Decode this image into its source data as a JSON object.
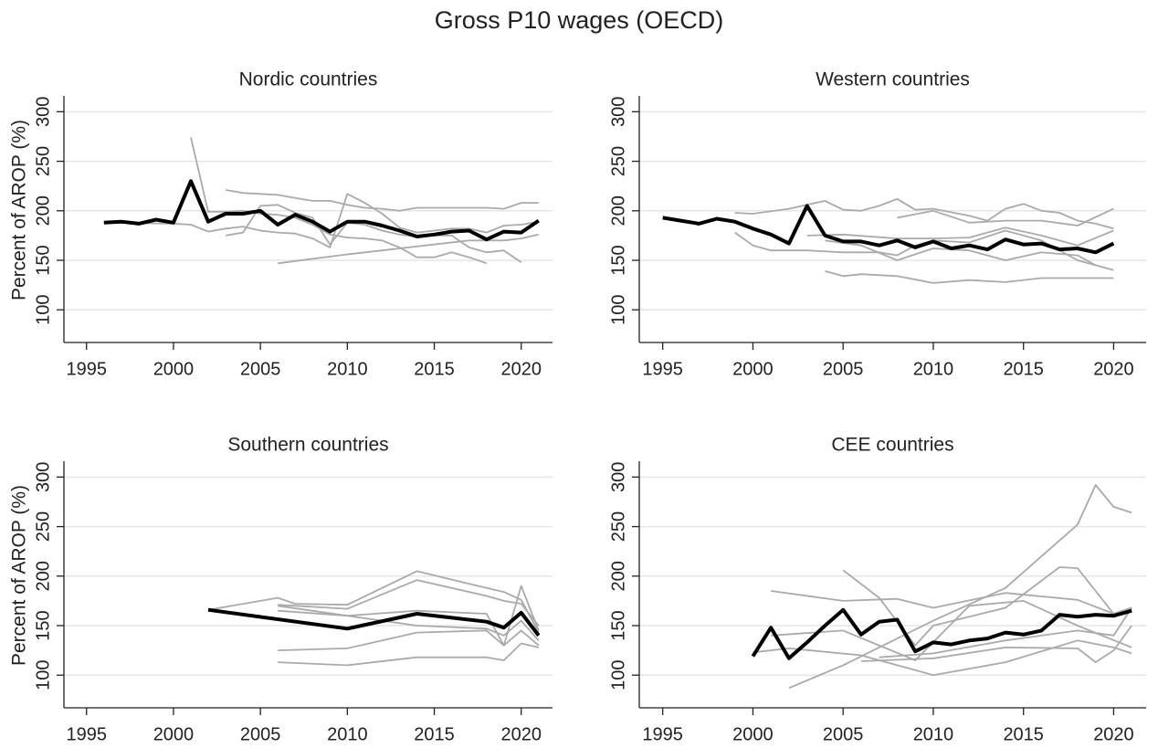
{
  "title": "Gross P10 wages (OECD)",
  "chart_data": [
    {
      "type": "line",
      "title": "Nordic countries",
      "ylabel": "Percent of AROP (%)",
      "xlim": [
        1993.7,
        2021.8
      ],
      "ylim": [
        67,
        316
      ],
      "xticks": [
        1995,
        2000,
        2005,
        2010,
        2015,
        2020
      ],
      "yticks": [
        100,
        150,
        200,
        250,
        300
      ],
      "grid": true,
      "series": [
        {
          "color": "#aaaaaa",
          "x": [
            2001,
            2002,
            2003,
            2004,
            2005,
            2006,
            2007,
            2008,
            2009,
            2010,
            2011,
            2012,
            2013,
            2014,
            2015,
            2016,
            2017,
            2018
          ],
          "values": [
            274,
            199,
            199,
            200,
            197,
            196,
            193,
            186,
            176,
            173,
            172,
            170,
            163,
            153,
            153,
            158,
            153,
            147
          ]
        },
        {
          "color": "#aaaaaa",
          "x": [
            2003,
            2004,
            2005,
            2006,
            2007,
            2008,
            2009,
            2010,
            2011,
            2012,
            2013,
            2014,
            2015,
            2016,
            2017,
            2018,
            2019,
            2020,
            2021
          ],
          "values": [
            221,
            218,
            217,
            216,
            213,
            210,
            210,
            206,
            203,
            202,
            200,
            203,
            203,
            203,
            203,
            203,
            202,
            208,
            208
          ]
        },
        {
          "color": "#aaaaaa",
          "x": [
            1996,
            2000,
            2001,
            2002,
            2003,
            2004,
            2005,
            2006,
            2007,
            2008,
            2009,
            2010,
            2011,
            2012,
            2013,
            2014,
            2015,
            2016,
            2017,
            2018,
            2019,
            2020,
            2021
          ],
          "values": [
            188,
            187,
            186,
            179,
            182,
            184,
            180,
            178,
            177,
            172,
            163,
            217,
            208,
            197,
            183,
            178,
            180,
            182,
            182,
            178,
            185,
            186,
            189
          ]
        },
        {
          "color": "#aaaaaa",
          "x": [
            2003,
            2004,
            2005,
            2006,
            2007,
            2008,
            2009,
            2010,
            2011,
            2012,
            2013,
            2014,
            2015,
            2016,
            2017,
            2018,
            2019,
            2020
          ],
          "values": [
            175,
            178,
            205,
            206,
            198,
            193,
            166,
            188,
            186,
            180,
            176,
            174,
            175,
            175,
            163,
            158,
            160,
            148
          ]
        },
        {
          "color": "#aaaaaa",
          "x": [
            2006,
            2010,
            2014,
            2017,
            2019,
            2020,
            2021
          ],
          "values": [
            147,
            156,
            164,
            170,
            170,
            172,
            176
          ]
        },
        {
          "color": "#000000",
          "x": [
            1996,
            1997,
            1998,
            1999,
            2000,
            2001,
            2002,
            2003,
            2004,
            2005,
            2006,
            2007,
            2008,
            2009,
            2010,
            2011,
            2012,
            2013,
            2014,
            2015,
            2016,
            2017,
            2018,
            2019,
            2020,
            2021
          ],
          "values": [
            188,
            189,
            187,
            191,
            188,
            230,
            189,
            197,
            197,
            200,
            186,
            196,
            189,
            179,
            189,
            189,
            185,
            180,
            174,
            176,
            179,
            180,
            171,
            179,
            178,
            190
          ]
        }
      ]
    },
    {
      "type": "line",
      "title": "Western countries",
      "xlim": [
        1993.7,
        2021.8
      ],
      "ylim": [
        67,
        316
      ],
      "xticks": [
        1995,
        2000,
        2005,
        2010,
        2015,
        2020
      ],
      "yticks": [
        100,
        150,
        200,
        250,
        300
      ],
      "grid": true,
      "series": [
        {
          "color": "#aaaaaa",
          "x": [
            1999,
            2000,
            2002,
            2004,
            2005,
            2006,
            2007,
            2008,
            2009,
            2010,
            2012,
            2013,
            2014,
            2015,
            2016,
            2017,
            2018,
            2019,
            2020
          ],
          "values": [
            198,
            197,
            202,
            210,
            201,
            200,
            205,
            212,
            201,
            202,
            195,
            190,
            202,
            207,
            200,
            198,
            190,
            187,
            182
          ]
        },
        {
          "color": "#aaaaaa",
          "x": [
            1999,
            2000,
            2001,
            2003,
            2005,
            2007,
            2008,
            2009,
            2010,
            2012,
            2014,
            2016,
            2018,
            2020
          ],
          "values": [
            178,
            165,
            160,
            160,
            158,
            158,
            155,
            165,
            170,
            168,
            180,
            170,
            150,
            140
          ]
        },
        {
          "color": "#aaaaaa",
          "x": [
            2004,
            2005,
            2006,
            2008,
            2010,
            2012,
            2014,
            2016,
            2018,
            2020
          ],
          "values": [
            139,
            134,
            136,
            134,
            127,
            130,
            128,
            132,
            132,
            132
          ]
        },
        {
          "color": "#aaaaaa",
          "x": [
            2008,
            2010,
            2012,
            2014,
            2016,
            2018,
            2020
          ],
          "values": [
            193,
            200,
            188,
            190,
            190,
            185,
            202
          ]
        },
        {
          "color": "#aaaaaa",
          "x": [
            2003,
            2005,
            2008,
            2010,
            2012,
            2014,
            2016,
            2018,
            2020
          ],
          "values": [
            175,
            176,
            172,
            172,
            173,
            183,
            175,
            165,
            180
          ]
        },
        {
          "color": "#aaaaaa",
          "x": [
            2004,
            2006,
            2008,
            2010,
            2012,
            2014,
            2016,
            2018,
            2019
          ],
          "values": [
            170,
            165,
            150,
            162,
            160,
            150,
            158,
            155,
            145
          ]
        },
        {
          "color": "#000000",
          "x": [
            1995,
            1996,
            1997,
            1998,
            1999,
            2000,
            2001,
            2002,
            2003,
            2004,
            2005,
            2006,
            2007,
            2008,
            2009,
            2010,
            2011,
            2012,
            2013,
            2014,
            2015,
            2016,
            2017,
            2018,
            2019,
            2020
          ],
          "values": [
            193,
            190,
            187,
            192,
            189,
            182,
            176,
            167,
            205,
            175,
            169,
            169,
            165,
            170,
            163,
            169,
            162,
            165,
            161,
            171,
            166,
            167,
            161,
            162,
            158,
            167
          ]
        }
      ]
    },
    {
      "type": "line",
      "title": "Southern countries",
      "ylabel": "Percent of AROP (%)",
      "xlim": [
        1993.7,
        2021.8
      ],
      "ylim": [
        67,
        316
      ],
      "xticks": [
        1995,
        2000,
        2005,
        2010,
        2015,
        2020
      ],
      "yticks": [
        100,
        150,
        200,
        250,
        300
      ],
      "grid": true,
      "series": [
        {
          "color": "#aaaaaa",
          "x": [
            2002,
            2006,
            2007,
            2010,
            2014,
            2018,
            2019,
            2020,
            2021
          ],
          "values": [
            166,
            178,
            172,
            171,
            205,
            188,
            184,
            176,
            143
          ]
        },
        {
          "color": "#aaaaaa",
          "x": [
            2006,
            2010,
            2014,
            2018,
            2019,
            2020,
            2021
          ],
          "values": [
            171,
            167,
            196,
            180,
            175,
            172,
            150
          ]
        },
        {
          "color": "#aaaaaa",
          "x": [
            2006,
            2010,
            2014,
            2018,
            2019,
            2020,
            2021
          ],
          "values": [
            170,
            160,
            165,
            162,
            130,
            190,
            145
          ]
        },
        {
          "color": "#aaaaaa",
          "x": [
            2006,
            2010,
            2014,
            2018,
            2019,
            2020,
            2021
          ],
          "values": [
            125,
            127,
            143,
            145,
            130,
            145,
            130
          ]
        },
        {
          "color": "#aaaaaa",
          "x": [
            2006,
            2010,
            2014,
            2018,
            2019,
            2020,
            2021
          ],
          "values": [
            113,
            110,
            118,
            118,
            115,
            132,
            128
          ]
        },
        {
          "color": "#aaaaaa",
          "x": [
            2006,
            2010,
            2014,
            2018,
            2019,
            2020,
            2021
          ],
          "values": [
            165,
            160,
            150,
            147,
            140,
            155,
            135
          ]
        },
        {
          "color": "#000000",
          "x": [
            2002,
            2010,
            2014,
            2018,
            2019,
            2020,
            2021
          ],
          "values": [
            166,
            147,
            162,
            154,
            148,
            163,
            140
          ]
        }
      ]
    },
    {
      "type": "line",
      "title": "CEE countries",
      "xlim": [
        1993.7,
        2021.8
      ],
      "ylim": [
        67,
        316
      ],
      "xticks": [
        1995,
        2000,
        2005,
        2010,
        2015,
        2020
      ],
      "yticks": [
        100,
        150,
        200,
        250,
        300
      ],
      "grid": true,
      "series": [
        {
          "color": "#aaaaaa",
          "x": [
            2002,
            2005,
            2010,
            2014,
            2018,
            2019,
            2020,
            2021
          ],
          "values": [
            87,
            110,
            155,
            188,
            252,
            292,
            270,
            264
          ]
        },
        {
          "color": "#aaaaaa",
          "x": [
            2001,
            2005,
            2008,
            2010,
            2014,
            2018,
            2020,
            2021
          ],
          "values": [
            185,
            175,
            177,
            168,
            183,
            176,
            162,
            168
          ]
        },
        {
          "color": "#aaaaaa",
          "x": [
            2005,
            2007,
            2009,
            2010,
            2014,
            2017,
            2018,
            2020,
            2021
          ],
          "values": [
            206,
            178,
            130,
            150,
            168,
            209,
            208,
            162,
            168
          ]
        },
        {
          "color": "#aaaaaa",
          "x": [
            2000,
            2002,
            2006,
            2010,
            2014,
            2018,
            2020,
            2021
          ],
          "values": [
            123,
            127,
            120,
            100,
            113,
            135,
            128,
            122
          ]
        },
        {
          "color": "#aaaaaa",
          "x": [
            2006,
            2010,
            2014,
            2018,
            2019,
            2020,
            2021
          ],
          "values": [
            114,
            117,
            128,
            127,
            113,
            125,
            150
          ]
        },
        {
          "color": "#aaaaaa",
          "x": [
            2001,
            2005,
            2009,
            2012,
            2015,
            2018,
            2021
          ],
          "values": [
            140,
            145,
            115,
            170,
            175,
            150,
            128
          ]
        },
        {
          "color": "#aaaaaa",
          "x": [
            2007,
            2010,
            2014,
            2018,
            2020,
            2021
          ],
          "values": [
            118,
            122,
            135,
            145,
            140,
            168
          ]
        },
        {
          "color": "#000000",
          "x": [
            2000,
            2001,
            2002,
            2003,
            2004,
            2005,
            2006,
            2007,
            2008,
            2009,
            2010,
            2011,
            2012,
            2013,
            2014,
            2015,
            2016,
            2017,
            2018,
            2019,
            2020,
            2021
          ],
          "values": [
            119,
            148,
            117,
            133,
            150,
            166,
            141,
            154,
            156,
            124,
            133,
            131,
            135,
            137,
            143,
            141,
            145,
            161,
            159,
            161,
            160,
            165
          ]
        }
      ]
    }
  ]
}
